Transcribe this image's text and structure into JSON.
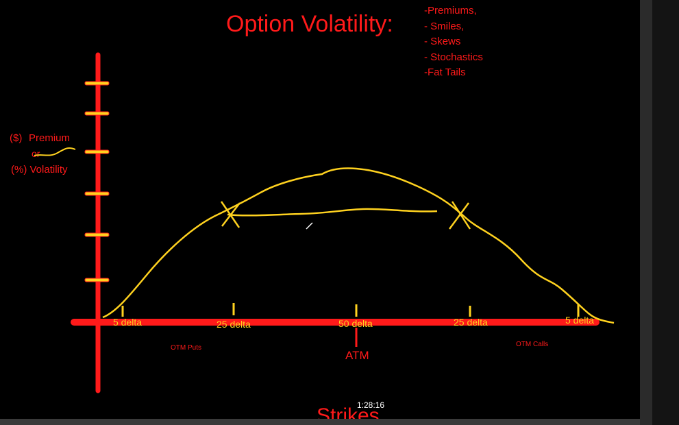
{
  "title": "Option Volatility:",
  "topics": [
    "-Premiums,",
    "- Smiles,",
    "- Skews",
    "- Stochastics",
    "-Fat Tails"
  ],
  "y_axis": {
    "line1": "($)",
    "line1b": "Premium",
    "line2": "or",
    "line3": "(%) Volatility"
  },
  "x_ticks": [
    "5 delta",
    "25 delta",
    "50 delta",
    "25 delta",
    "5 delta"
  ],
  "regions": {
    "left": "OTM Puts",
    "center": "ATM",
    "right": "OTM Calls"
  },
  "x_axis_title": "Strikes",
  "player": {
    "timestamp": "1:28:16"
  },
  "colors": {
    "background": "#000000",
    "axis": "#ff1a1a",
    "curve": "#ffd21f",
    "text": "#ff1a1a"
  }
}
